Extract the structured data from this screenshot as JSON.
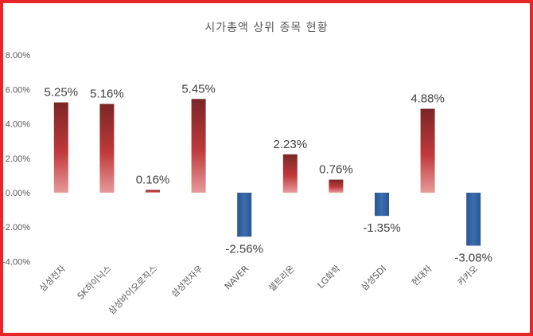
{
  "chart_data": {
    "type": "bar",
    "title": "시가총액 상위 종목  현황",
    "categories": [
      "삼성전자",
      "SK하이닉스",
      "삼성바이오로직스",
      "삼성전자우",
      "NAVER",
      "셀트리온",
      "LG화학",
      "삼성SDI",
      "현대차",
      "카카오"
    ],
    "values": [
      5.25,
      5.16,
      0.16,
      5.45,
      -2.56,
      2.23,
      0.76,
      -1.35,
      4.88,
      -3.08
    ],
    "data_labels": [
      "5.25%",
      "5.16%",
      "0.16%",
      "5.45%",
      "-2.56%",
      "2.23%",
      "0.76%",
      "-1.35%",
      "4.88%",
      "-3.08%"
    ],
    "yticks": [
      8,
      6,
      4,
      2,
      0,
      -2,
      -4
    ],
    "ytick_labels": [
      "8.00%",
      "6.00%",
      "4.00%",
      "2.00%",
      "0.00%",
      "-2.00%",
      "-4.00%"
    ],
    "ylim": [
      -4,
      8
    ],
    "xlabel": "",
    "ylabel": "",
    "grid": false,
    "legend": "none",
    "colors": {
      "positive_top": "#7b2626",
      "positive_mid": "#c0393b",
      "positive_bottom": "#e79a9a",
      "negative": "#2f5f9e",
      "border": "#e8262a"
    }
  }
}
